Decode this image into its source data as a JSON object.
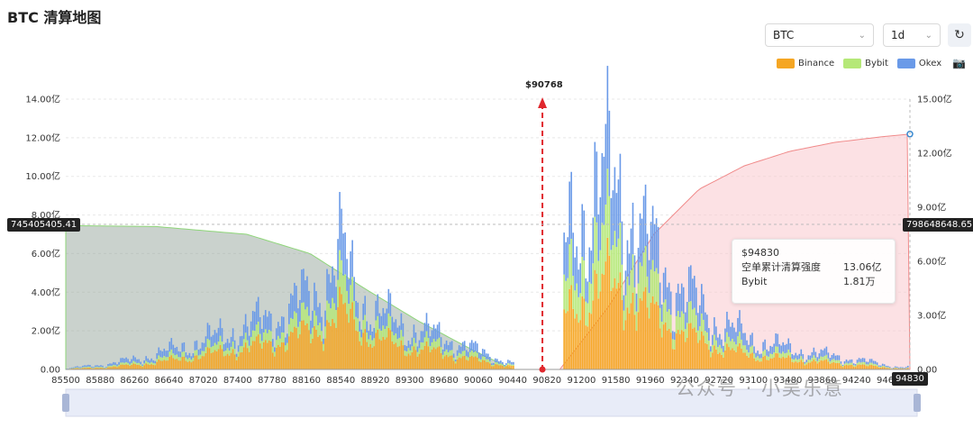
{
  "header": {
    "title": "BTC 清算地图"
  },
  "controls": {
    "coin": "BTC",
    "period": "1d"
  },
  "legend": [
    {
      "name": "Binance",
      "color": "#f5a623"
    },
    {
      "name": "Bybit",
      "color": "#b5e878"
    },
    {
      "name": "Okex",
      "color": "#6a9ae8"
    }
  ],
  "tooltip": {
    "price": "$94830",
    "rows": [
      {
        "label": "空单累计清算强度",
        "value": "13.06亿"
      },
      {
        "label": "Bybit",
        "value": "1.81万"
      }
    ]
  },
  "badges": {
    "left": "745405405.41",
    "right": "798648648.65",
    "x": "94830"
  },
  "marker": "$90768",
  "watermark": "公众号 · 小吴乐意",
  "chart_data": {
    "type": "bar",
    "title": "BTC 清算地图",
    "x_ticks": [
      "85500",
      "85880",
      "86260",
      "86640",
      "87020",
      "87400",
      "87780",
      "88160",
      "88540",
      "88920",
      "89300",
      "89680",
      "90060",
      "90440",
      "90820",
      "91200",
      "91580",
      "91960",
      "92340",
      "92720",
      "93100",
      "93480",
      "93860",
      "94240",
      "94620"
    ],
    "xlim": [
      85500,
      94830
    ],
    "left_axis": {
      "ticks": [
        "0.00",
        "2.00亿",
        "4.00亿",
        "6.00亿",
        "8.00亿",
        "10.00亿",
        "12.00亿",
        "14.00亿"
      ],
      "ylim": [
        0,
        14
      ],
      "unit": "亿"
    },
    "right_axis": {
      "ticks": [
        "0.00",
        "3.00亿",
        "6.00亿",
        "9.00亿",
        "12.00亿",
        "15.00亿"
      ],
      "ylim": [
        0,
        15
      ],
      "unit": "亿"
    },
    "current_price": 90768,
    "series": [
      {
        "name": "Binance",
        "color": "#f5a623",
        "x": [
          85500,
          85900,
          86300,
          86700,
          87100,
          87500,
          87900,
          88300,
          88540,
          88700,
          88900,
          89300,
          89700,
          90100,
          90440,
          91000,
          91100,
          91300,
          91500,
          91700,
          91900,
          92300,
          92700,
          93100,
          93500,
          93900,
          94300,
          94700
        ],
        "values": [
          0.03,
          0.1,
          0.25,
          0.5,
          0.8,
          1.1,
          1.5,
          2.1,
          2.9,
          2.3,
          1.6,
          1.1,
          0.8,
          0.4,
          0.15,
          2.6,
          3.3,
          3.9,
          4.4,
          4.0,
          3.0,
          1.9,
          1.1,
          0.7,
          0.5,
          0.35,
          0.2,
          0.05
        ]
      },
      {
        "name": "Bybit",
        "color": "#b5e878",
        "x": [
          85500,
          85900,
          86300,
          86700,
          87100,
          87500,
          87900,
          88300,
          88540,
          88700,
          88900,
          89300,
          89700,
          90100,
          90440,
          91000,
          91100,
          91300,
          91500,
          91700,
          91900,
          92300,
          92700,
          93100,
          93500,
          93900,
          94300,
          94700
        ],
        "values": [
          0.01,
          0.05,
          0.1,
          0.2,
          0.3,
          0.4,
          0.55,
          0.75,
          1.3,
          0.8,
          0.55,
          0.4,
          0.3,
          0.15,
          0.05,
          1.5,
          1.8,
          2.1,
          2.3,
          2.0,
          1.5,
          0.9,
          0.5,
          0.3,
          0.2,
          0.15,
          0.1,
          0.02
        ]
      },
      {
        "name": "Okex",
        "color": "#6a9ae8",
        "x": [
          85500,
          85900,
          86300,
          86700,
          87100,
          87500,
          87900,
          88300,
          88540,
          88700,
          88900,
          89300,
          89700,
          90100,
          90440,
          91000,
          91100,
          91300,
          91500,
          91700,
          91900,
          92300,
          92700,
          93100,
          93500,
          93900,
          94300,
          94700
        ],
        "values": [
          0.02,
          0.1,
          0.2,
          0.35,
          0.5,
          0.7,
          0.9,
          1.3,
          1.8,
          1.0,
          0.8,
          0.6,
          0.5,
          0.3,
          0.1,
          1.7,
          2.4,
          2.7,
          3.0,
          2.6,
          2.0,
          1.3,
          0.8,
          0.5,
          0.35,
          0.25,
          0.15,
          0.05
        ]
      }
    ],
    "cumulative_long": {
      "x": [
        85500,
        86500,
        87500,
        88200,
        88800,
        89400,
        90000,
        90440
      ],
      "values": [
        7.45,
        7.4,
        7.0,
        6.0,
        4.2,
        2.5,
        1.0,
        0
      ]
    },
    "cumulative_short": {
      "x": [
        90960,
        91500,
        92000,
        92500,
        93000,
        93500,
        94000,
        94500,
        94830
      ],
      "values": [
        0,
        3.5,
        7.5,
        10.0,
        11.3,
        12.1,
        12.6,
        12.9,
        13.06
      ]
    },
    "grid": true,
    "legend_position": "top-right"
  }
}
